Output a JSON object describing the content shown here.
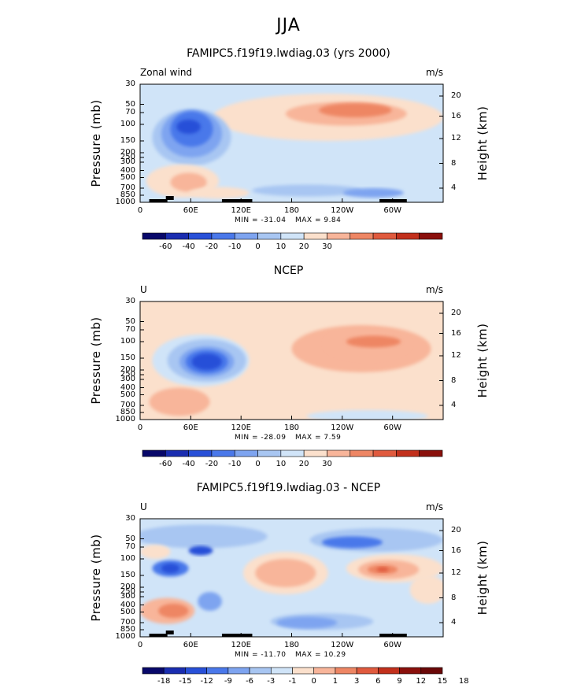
{
  "page_title": "JJA",
  "colors": {
    "scale_main": [
      "#08086a",
      "#1a2db0",
      "#2850d8",
      "#4a78ea",
      "#7ea4f0",
      "#a8c6f2",
      "#d0e4f8",
      "#fbe0cc",
      "#f8b59a",
      "#ee8664",
      "#e05a3e",
      "#c2301c",
      "#8a100c"
    ],
    "scale_diff": [
      "#08086a",
      "#1a2db0",
      "#2850d8",
      "#4a78ea",
      "#7ea4f0",
      "#a8c6f2",
      "#d0e4f8",
      "#fbe0cc",
      "#f8b59a",
      "#ee8664",
      "#e05a3e",
      "#c2301c",
      "#8a100c",
      "#6a0808"
    ]
  },
  "chart_data": [
    {
      "type": "heatmap",
      "title": "FAMIPC5.f19f19.lwdiag.03 (yrs 2000)",
      "variable_label": "Zonal wind",
      "units": "m/s",
      "ylabel": "Pressure (mb)",
      "ylabel_right": "Height (km)",
      "x_ticks": [
        "0",
        "60E",
        "120E",
        "180",
        "120W",
        "60W"
      ],
      "y_ticks": [
        "30",
        "50",
        "70",
        "100",
        "150",
        "200",
        "250",
        "300",
        "400",
        "500",
        "700",
        "850",
        "1000"
      ],
      "y_ticks_right": [
        "20",
        "16",
        "12",
        "8",
        "4"
      ],
      "min_label": "MIN = -31.04",
      "max_label": "MAX =   9.84",
      "colorbar_labels": [
        "-60",
        "-40",
        "-20",
        "-10",
        "0",
        "10",
        "20",
        "30"
      ]
    },
    {
      "type": "heatmap",
      "title": "NCEP",
      "variable_label": "U",
      "units": "m/s",
      "ylabel": "Pressure (mb)",
      "ylabel_right": "Height (km)",
      "x_ticks": [
        "0",
        "60E",
        "120E",
        "180",
        "120W",
        "60W"
      ],
      "y_ticks": [
        "30",
        "50",
        "70",
        "100",
        "150",
        "200",
        "250",
        "300",
        "400",
        "500",
        "700",
        "850",
        "1000"
      ],
      "y_ticks_right": [
        "20",
        "16",
        "12",
        "8",
        "4"
      ],
      "min_label": "MIN = -28.09",
      "max_label": "MAX =   7.59",
      "colorbar_labels": [
        "-60",
        "-40",
        "-20",
        "-10",
        "0",
        "10",
        "20",
        "30"
      ]
    },
    {
      "type": "heatmap",
      "title": "FAMIPC5.f19f19.lwdiag.03 - NCEP",
      "variable_label": "U",
      "units": "m/s",
      "ylabel": "Pressure (mb)",
      "ylabel_right": "Height (km)",
      "x_ticks": [
        "0",
        "60E",
        "120E",
        "180",
        "120W",
        "60W"
      ],
      "y_ticks": [
        "30",
        "50",
        "70",
        "100",
        "150",
        "200",
        "250",
        "300",
        "400",
        "500",
        "700",
        "850",
        "1000"
      ],
      "y_ticks_right": [
        "20",
        "16",
        "12",
        "8",
        "4"
      ],
      "min_label": "MIN = -11.70",
      "max_label": "MAX =  10.29",
      "colorbar_labels": [
        "-18",
        "-15",
        "-12",
        "-9",
        "-6",
        "-3",
        "-1",
        "0",
        "1",
        "3",
        "6",
        "9",
        "12",
        "15",
        "18"
      ]
    }
  ]
}
